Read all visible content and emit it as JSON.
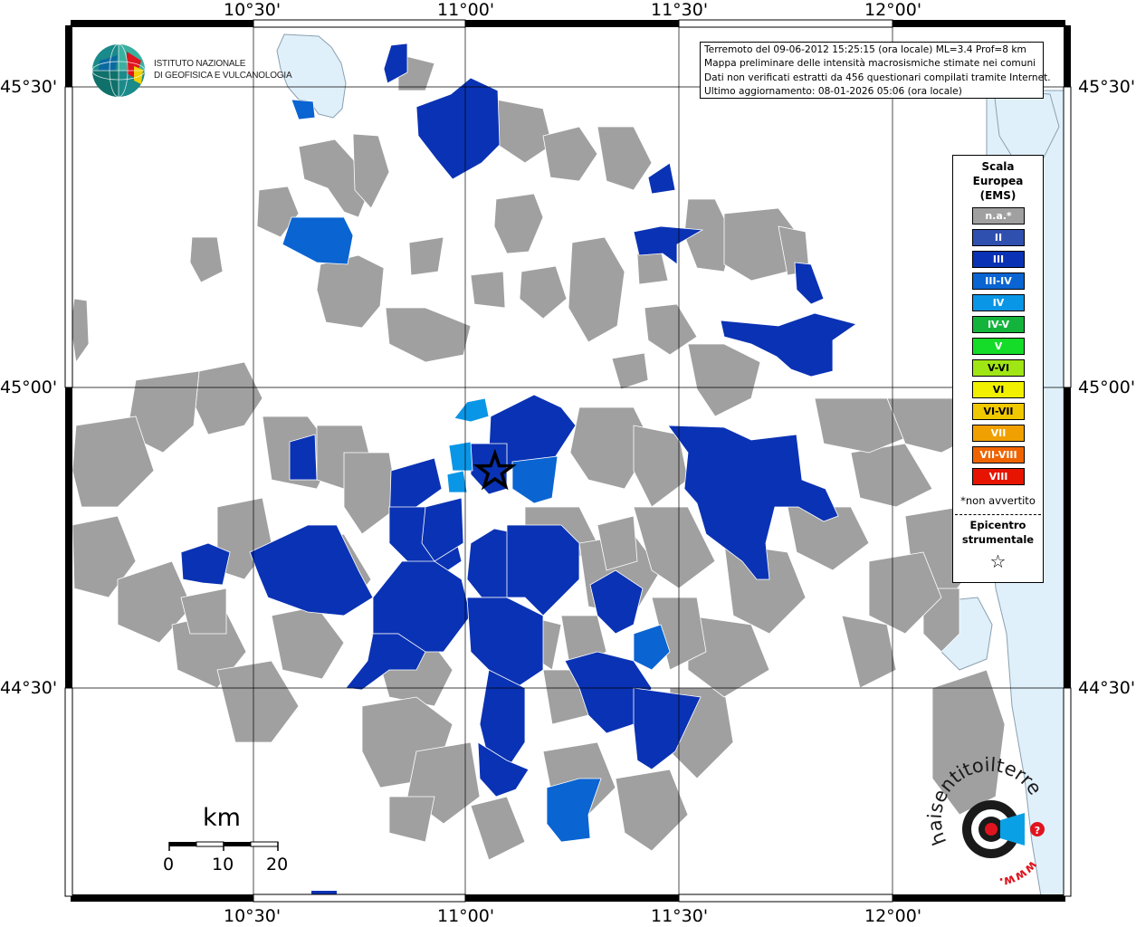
{
  "header": {
    "info_lines": [
      "Terremoto del 09-06-2012 15:25:15 (ora locale) ML=3.4 Prof=8 km",
      "Mappa preliminare delle intensità macrosismiche stimate nei comuni",
      "Dati non verificati estratti da 456 questionari compilati tramite Internet.",
      "Ultimo aggiornamento: 08-01-2026 05:06 (ora locale)"
    ]
  },
  "institute": {
    "line1": "ISTITUTO NAZIONALE",
    "line2": "DI GEOFISICA E VULCANOLOGIA"
  },
  "axes": {
    "lon_labels": [
      "10°30'",
      "11°00'",
      "11°30'",
      "12°00'"
    ],
    "lat_labels": [
      "45°30'",
      "45°00'",
      "44°30'"
    ]
  },
  "legend": {
    "title_lines": [
      "Scala",
      "Europea",
      "(EMS)"
    ],
    "items": [
      {
        "label": "n.a.*",
        "color": "#a0a0a0"
      },
      {
        "label": "II",
        "color": "#3050b0"
      },
      {
        "label": "III",
        "color": "#0a32b4"
      },
      {
        "label": "III-IV",
        "color": "#0a64d2"
      },
      {
        "label": "IV",
        "color": "#0a96e6"
      },
      {
        "label": "IV-V",
        "color": "#14b43c"
      },
      {
        "label": "V",
        "color": "#14dc28"
      },
      {
        "label": "V-VI",
        "color": "#a0e614"
      },
      {
        "label": "VI",
        "color": "#f0f000"
      },
      {
        "label": "VI-VII",
        "color": "#f0c800"
      },
      {
        "label": "VII",
        "color": "#f0a000"
      },
      {
        "label": "VII-VIII",
        "color": "#f06400"
      },
      {
        "label": "VIII",
        "color": "#e61400"
      }
    ],
    "note": "*non avvertito",
    "epicenter_lines": [
      "Epicentro",
      "strumentale"
    ],
    "epicenter_symbol": "☆"
  },
  "scale_bar": {
    "unit": "km",
    "ticks": [
      "0",
      "10",
      "20"
    ]
  },
  "epicenter": {
    "lon": 11.07,
    "lat": 44.86
  },
  "colors": {
    "na": "#a0a0a0",
    "III": "#0a32b4",
    "III_IV": "#0a64d2",
    "IV": "#0a96e6",
    "water": "#e0f0fa"
  },
  "watermark": {
    "text": "haisentitoilterremoto.it",
    "url": "www."
  }
}
